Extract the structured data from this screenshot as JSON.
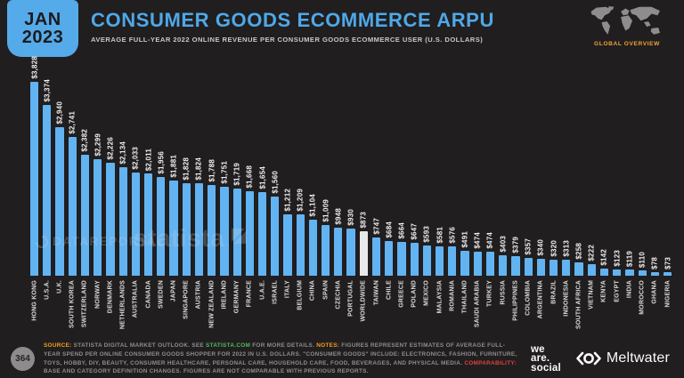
{
  "header": {
    "date_line1": "JAN",
    "date_line2": "2023",
    "title": "CONSUMER GOODS ECOMMERCE ARPU",
    "subtitle": "AVERAGE FULL-YEAR 2022 ONLINE REVENUE PER CONSUMER GOODS ECOMMERCE USER (U.S. DOLLARS)",
    "overview_label": "GLOBAL OVERVIEW"
  },
  "chart_data": {
    "type": "bar",
    "title": "Consumer Goods Ecommerce ARPU",
    "ylabel": "Average full-year 2022 online revenue per consumer goods ecommerce user (U.S. dollars)",
    "ylim": [
      0,
      3828
    ],
    "grid": false,
    "highlight_category": "WORLDWIDE",
    "categories": [
      "HONG KONG",
      "U.S.A.",
      "U.K.",
      "SOUTH KOREA",
      "SWITZERLAND",
      "NORWAY",
      "DENMARK",
      "NETHERLANDS",
      "AUSTRALIA",
      "CANADA",
      "SWEDEN",
      "JAPAN",
      "SINGAPORE",
      "AUSTRIA",
      "NEW ZEALAND",
      "IRELAND",
      "GERMANY",
      "FRANCE",
      "U.A.E.",
      "ISRAEL",
      "ITALY",
      "BELGIUM",
      "CHINA",
      "SPAIN",
      "CZECHIA",
      "PORTUGAL",
      "WORLDWIDE",
      "TAIWAN",
      "CHILE",
      "GREECE",
      "POLAND",
      "MEXICO",
      "MALAYSIA",
      "ROMANIA",
      "THAILAND",
      "SAUDI ARABIA",
      "TURKEY",
      "RUSSIA",
      "PHILIPPINES",
      "COLOMBIA",
      "ARGENTINA",
      "BRAZIL",
      "INDONESIA",
      "SOUTH AFRICA",
      "VIETNAM",
      "KENYA",
      "EGYPT",
      "INDIA",
      "MOROCCO",
      "GHANA",
      "NIGERIA"
    ],
    "values": [
      3828,
      3374,
      2940,
      2741,
      2382,
      2299,
      2226,
      2134,
      2033,
      2011,
      1956,
      1881,
      1828,
      1824,
      1788,
      1751,
      1719,
      1668,
      1654,
      1560,
      1212,
      1209,
      1104,
      1009,
      948,
      930,
      873,
      747,
      684,
      664,
      647,
      593,
      581,
      576,
      491,
      474,
      474,
      403,
      379,
      357,
      340,
      320,
      313,
      258,
      222,
      142,
      123,
      119,
      110,
      78,
      73
    ],
    "value_labels": [
      "$3,828",
      "$3,374",
      "$2,940",
      "$2,741",
      "$2,382",
      "$2,299",
      "$2,226",
      "$2,134",
      "$2,033",
      "$2,011",
      "$1,956",
      "$1,881",
      "$1,828",
      "$1,824",
      "$1,788",
      "$1,751",
      "$1,719",
      "$1,668",
      "$1,654",
      "$1,560",
      "$1,212",
      "$1,209",
      "$1,104",
      "$1,009",
      "$948",
      "$930",
      "$873",
      "$747",
      "$684",
      "$664",
      "$647",
      "$593",
      "$581",
      "$576",
      "$491",
      "$474",
      "$474",
      "$403",
      "$379",
      "$357",
      "$340",
      "$320",
      "$313",
      "$258",
      "$222",
      "$142",
      "$123",
      "$119",
      "$110",
      "$78",
      "$73"
    ],
    "bar_color": "#62b3f2",
    "highlight_color": "#e9e9e9"
  },
  "watermarks": {
    "datareportal": "DATAREPORTAL",
    "statista": "statista"
  },
  "footer": {
    "page_number": "364",
    "source_label": "SOURCE:",
    "source_text": " STATISTA DIGITAL MARKET OUTLOOK. SEE ",
    "source_link": "STATISTA.COM",
    "source_text2": " FOR MORE DETAILS. ",
    "notes_label": "NOTES:",
    "notes_text": " FIGURES REPRESENT ESTIMATES OF AVERAGE FULL-YEAR SPEND PER ONLINE CONSUMER GOODS SHOPPER FOR 2022 IN U.S. DOLLARS. \"CONSUMER GOODS\" INCLUDE: ELECTRONICS, FASHION, FURNITURE, TOYS, HOBBY, DIY, BEAUTY, CONSUMER HEALTHCARE, PERSONAL CARE, HOUSEHOLD CARE, FOOD, BEVERAGES, AND PHYSICAL MEDIA. ",
    "comparability_label": "COMPARABILITY:",
    "comparability_text": " BASE AND CATEGORY DEFINITION CHANGES. FIGURES ARE NOT COMPARABLE WITH PREVIOUS REPORTS.",
    "logo_we_are_social": [
      "we",
      "are.",
      "social"
    ],
    "logo_meltwater": "Meltwater"
  },
  "colors": {
    "background": "#201e1f",
    "accent_blue": "#4fa8e8",
    "bar_blue": "#62b3f2",
    "highlight_white": "#e9e9e9",
    "orange": "#f5a01e",
    "green": "#53b95c",
    "red": "#e0433c"
  }
}
